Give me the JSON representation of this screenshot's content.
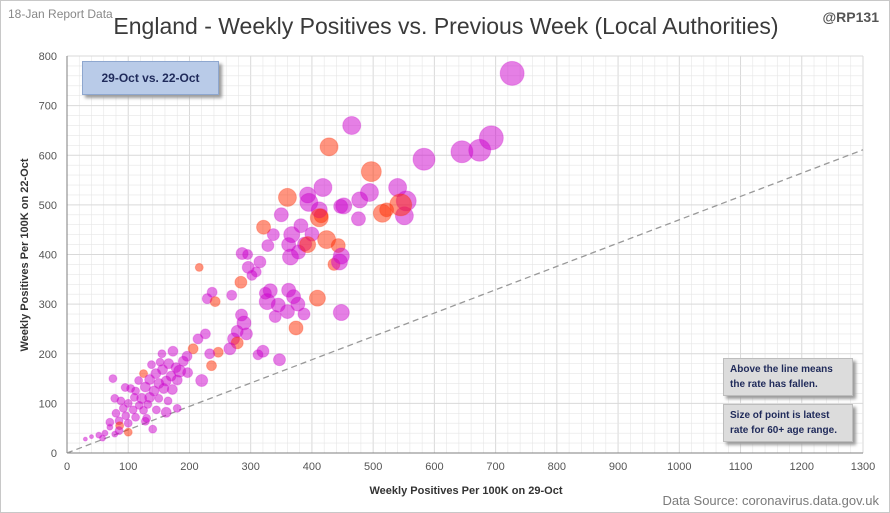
{
  "header": {
    "report_date": "18-Jan Report Data",
    "title": "England - Weekly Positives vs. Previous Week (Local Authorities)",
    "handle": "@RP131"
  },
  "period_label": "29-Oct vs. 22-Oct",
  "notes": {
    "line_note": "Above the line means the rate has fallen.",
    "size_note": "Size of point is latest rate for 60+ age range."
  },
  "source": "Data Source: coronavirus.data.gov.uk",
  "colors": {
    "rising": "#cc00cc",
    "falling": "#ff2a00",
    "reference_line": "#999999",
    "grid": "#e6e6e6"
  },
  "chart_data": {
    "type": "scatter",
    "title": "England - Weekly Positives vs. Previous Week (Local Authorities)",
    "subtitle": "29-Oct vs. 22-Oct",
    "xlabel": "Weekly Positives Per 100K on 29-Oct",
    "ylabel": "Weekly Positives Per 100K on 22-Oct",
    "xlim": [
      0,
      1300
    ],
    "ylim": [
      0,
      800
    ],
    "xticks": [
      0,
      100,
      200,
      300,
      400,
      500,
      600,
      700,
      800,
      900,
      1000,
      1100,
      1200,
      1300
    ],
    "yticks": [
      0,
      100,
      200,
      300,
      400,
      500,
      600,
      700,
      800
    ],
    "grid": true,
    "reference_line": {
      "from": [
        0,
        0
      ],
      "to": [
        1300,
        611
      ]
    },
    "points": [
      {
        "x": 727,
        "y": 765,
        "s": 12,
        "c": "rising"
      },
      {
        "x": 693,
        "y": 635,
        "s": 12,
        "c": "rising"
      },
      {
        "x": 674,
        "y": 610,
        "s": 11,
        "c": "rising"
      },
      {
        "x": 645,
        "y": 607,
        "s": 11,
        "c": "rising"
      },
      {
        "x": 583,
        "y": 592,
        "s": 11,
        "c": "rising"
      },
      {
        "x": 465,
        "y": 660,
        "s": 9,
        "c": "rising"
      },
      {
        "x": 428,
        "y": 617,
        "s": 9,
        "c": "falling"
      },
      {
        "x": 497,
        "y": 567,
        "s": 10,
        "c": "falling"
      },
      {
        "x": 418,
        "y": 535,
        "s": 9,
        "c": "rising"
      },
      {
        "x": 494,
        "y": 525,
        "s": 9,
        "c": "rising"
      },
      {
        "x": 540,
        "y": 535,
        "s": 9,
        "c": "rising"
      },
      {
        "x": 554,
        "y": 508,
        "s": 10,
        "c": "rising"
      },
      {
        "x": 551,
        "y": 478,
        "s": 9,
        "c": "rising"
      },
      {
        "x": 545,
        "y": 500,
        "s": 11,
        "c": "falling"
      },
      {
        "x": 515,
        "y": 483,
        "s": 9,
        "c": "falling"
      },
      {
        "x": 522,
        "y": 490,
        "s": 7,
        "c": "falling"
      },
      {
        "x": 478,
        "y": 510,
        "s": 8,
        "c": "rising"
      },
      {
        "x": 476,
        "y": 472,
        "s": 7,
        "c": "rising"
      },
      {
        "x": 452,
        "y": 498,
        "s": 8,
        "c": "rising"
      },
      {
        "x": 447,
        "y": 497,
        "s": 7,
        "c": "rising"
      },
      {
        "x": 393,
        "y": 520,
        "s": 8,
        "c": "rising"
      },
      {
        "x": 395,
        "y": 505,
        "s": 9,
        "c": "rising"
      },
      {
        "x": 360,
        "y": 515,
        "s": 9,
        "c": "falling"
      },
      {
        "x": 350,
        "y": 480,
        "s": 7,
        "c": "rising"
      },
      {
        "x": 412,
        "y": 490,
        "s": 8,
        "c": "rising"
      },
      {
        "x": 412,
        "y": 474,
        "s": 9,
        "c": "falling"
      },
      {
        "x": 415,
        "y": 478,
        "s": 7,
        "c": "falling"
      },
      {
        "x": 382,
        "y": 458,
        "s": 7,
        "c": "rising"
      },
      {
        "x": 367,
        "y": 440,
        "s": 8,
        "c": "rising"
      },
      {
        "x": 400,
        "y": 441,
        "s": 7,
        "c": "rising"
      },
      {
        "x": 424,
        "y": 430,
        "s": 9,
        "c": "falling"
      },
      {
        "x": 443,
        "y": 418,
        "s": 7,
        "c": "falling"
      },
      {
        "x": 362,
        "y": 420,
        "s": 7,
        "c": "rising"
      },
      {
        "x": 378,
        "y": 405,
        "s": 7,
        "c": "rising"
      },
      {
        "x": 393,
        "y": 420,
        "s": 8,
        "c": "falling"
      },
      {
        "x": 388,
        "y": 421,
        "s": 7,
        "c": "rising"
      },
      {
        "x": 448,
        "y": 397,
        "s": 8,
        "c": "rising"
      },
      {
        "x": 445,
        "y": 385,
        "s": 8,
        "c": "rising"
      },
      {
        "x": 436,
        "y": 380,
        "s": 6,
        "c": "falling"
      },
      {
        "x": 365,
        "y": 395,
        "s": 8,
        "c": "rising"
      },
      {
        "x": 321,
        "y": 455,
        "s": 7,
        "c": "falling"
      },
      {
        "x": 337,
        "y": 440,
        "s": 6,
        "c": "rising"
      },
      {
        "x": 328,
        "y": 418,
        "s": 6,
        "c": "rising"
      },
      {
        "x": 286,
        "y": 402,
        "s": 6,
        "c": "rising"
      },
      {
        "x": 295,
        "y": 400,
        "s": 5,
        "c": "rising"
      },
      {
        "x": 315,
        "y": 385,
        "s": 6,
        "c": "rising"
      },
      {
        "x": 296,
        "y": 374,
        "s": 6,
        "c": "rising"
      },
      {
        "x": 309,
        "y": 365,
        "s": 5,
        "c": "rising"
      },
      {
        "x": 284,
        "y": 344,
        "s": 6,
        "c": "falling"
      },
      {
        "x": 302,
        "y": 358,
        "s": 5,
        "c": "rising"
      },
      {
        "x": 237,
        "y": 324,
        "s": 5,
        "c": "rising"
      },
      {
        "x": 229,
        "y": 311,
        "s": 5,
        "c": "rising"
      },
      {
        "x": 242,
        "y": 305,
        "s": 5,
        "c": "falling"
      },
      {
        "x": 269,
        "y": 318,
        "s": 5,
        "c": "rising"
      },
      {
        "x": 216,
        "y": 374,
        "s": 4,
        "c": "falling"
      },
      {
        "x": 332,
        "y": 327,
        "s": 7,
        "c": "rising"
      },
      {
        "x": 324,
        "y": 322,
        "s": 6,
        "c": "rising"
      },
      {
        "x": 362,
        "y": 328,
        "s": 7,
        "c": "rising"
      },
      {
        "x": 370,
        "y": 315,
        "s": 7,
        "c": "rising"
      },
      {
        "x": 409,
        "y": 312,
        "s": 8,
        "c": "falling"
      },
      {
        "x": 327,
        "y": 305,
        "s": 8,
        "c": "rising"
      },
      {
        "x": 345,
        "y": 298,
        "s": 7,
        "c": "rising"
      },
      {
        "x": 377,
        "y": 300,
        "s": 7,
        "c": "rising"
      },
      {
        "x": 387,
        "y": 280,
        "s": 6,
        "c": "rising"
      },
      {
        "x": 360,
        "y": 285,
        "s": 7,
        "c": "rising"
      },
      {
        "x": 340,
        "y": 275,
        "s": 6,
        "c": "rising"
      },
      {
        "x": 448,
        "y": 283,
        "s": 8,
        "c": "rising"
      },
      {
        "x": 285,
        "y": 278,
        "s": 6,
        "c": "rising"
      },
      {
        "x": 289,
        "y": 262,
        "s": 7,
        "c": "rising"
      },
      {
        "x": 278,
        "y": 245,
        "s": 6,
        "c": "rising"
      },
      {
        "x": 293,
        "y": 240,
        "s": 6,
        "c": "rising"
      },
      {
        "x": 374,
        "y": 252,
        "s": 7,
        "c": "falling"
      },
      {
        "x": 226,
        "y": 240,
        "s": 5,
        "c": "rising"
      },
      {
        "x": 214,
        "y": 230,
        "s": 5,
        "c": "rising"
      },
      {
        "x": 272,
        "y": 230,
        "s": 6,
        "c": "rising"
      },
      {
        "x": 278,
        "y": 222,
        "s": 6,
        "c": "falling"
      },
      {
        "x": 266,
        "y": 210,
        "s": 6,
        "c": "rising"
      },
      {
        "x": 320,
        "y": 205,
        "s": 6,
        "c": "rising"
      },
      {
        "x": 347,
        "y": 188,
        "s": 6,
        "c": "rising"
      },
      {
        "x": 312,
        "y": 198,
        "s": 5,
        "c": "rising"
      },
      {
        "x": 247,
        "y": 203,
        "s": 5,
        "c": "falling"
      },
      {
        "x": 233,
        "y": 200,
        "s": 5,
        "c": "rising"
      },
      {
        "x": 206,
        "y": 210,
        "s": 5,
        "c": "falling"
      },
      {
        "x": 196,
        "y": 195,
        "s": 5,
        "c": "rising"
      },
      {
        "x": 190,
        "y": 185,
        "s": 5,
        "c": "rising"
      },
      {
        "x": 178,
        "y": 172,
        "s": 5,
        "c": "rising"
      },
      {
        "x": 166,
        "y": 180,
        "s": 5,
        "c": "rising"
      },
      {
        "x": 152,
        "y": 183,
        "s": 4,
        "c": "rising"
      },
      {
        "x": 138,
        "y": 178,
        "s": 4,
        "c": "rising"
      },
      {
        "x": 173,
        "y": 205,
        "s": 5,
        "c": "rising"
      },
      {
        "x": 156,
        "y": 168,
        "s": 5,
        "c": "rising"
      },
      {
        "x": 184,
        "y": 165,
        "s": 6,
        "c": "rising"
      },
      {
        "x": 197,
        "y": 162,
        "s": 5,
        "c": "rising"
      },
      {
        "x": 170,
        "y": 155,
        "s": 5,
        "c": "rising"
      },
      {
        "x": 145,
        "y": 160,
        "s": 5,
        "c": "rising"
      },
      {
        "x": 125,
        "y": 160,
        "s": 4,
        "c": "falling"
      },
      {
        "x": 117,
        "y": 146,
        "s": 4,
        "c": "rising"
      },
      {
        "x": 135,
        "y": 148,
        "s": 5,
        "c": "rising"
      },
      {
        "x": 150,
        "y": 140,
        "s": 5,
        "c": "rising"
      },
      {
        "x": 162,
        "y": 145,
        "s": 5,
        "c": "rising"
      },
      {
        "x": 180,
        "y": 147,
        "s": 5,
        "c": "rising"
      },
      {
        "x": 220,
        "y": 146,
        "s": 6,
        "c": "rising"
      },
      {
        "x": 236,
        "y": 176,
        "s": 5,
        "c": "falling"
      },
      {
        "x": 128,
        "y": 133,
        "s": 5,
        "c": "rising"
      },
      {
        "x": 142,
        "y": 125,
        "s": 5,
        "c": "rising"
      },
      {
        "x": 158,
        "y": 130,
        "s": 5,
        "c": "rising"
      },
      {
        "x": 172,
        "y": 128,
        "s": 5,
        "c": "rising"
      },
      {
        "x": 112,
        "y": 125,
        "s": 4,
        "c": "rising"
      },
      {
        "x": 104,
        "y": 130,
        "s": 4,
        "c": "rising"
      },
      {
        "x": 95,
        "y": 132,
        "s": 4,
        "c": "rising"
      },
      {
        "x": 135,
        "y": 112,
        "s": 5,
        "c": "rising"
      },
      {
        "x": 122,
        "y": 110,
        "s": 5,
        "c": "rising"
      },
      {
        "x": 110,
        "y": 112,
        "s": 4,
        "c": "rising"
      },
      {
        "x": 150,
        "y": 110,
        "s": 4,
        "c": "rising"
      },
      {
        "x": 165,
        "y": 105,
        "s": 4,
        "c": "rising"
      },
      {
        "x": 132,
        "y": 98,
        "s": 4,
        "c": "rising"
      },
      {
        "x": 118,
        "y": 96,
        "s": 4,
        "c": "rising"
      },
      {
        "x": 100,
        "y": 100,
        "s": 4,
        "c": "rising"
      },
      {
        "x": 88,
        "y": 105,
        "s": 4,
        "c": "rising"
      },
      {
        "x": 78,
        "y": 110,
        "s": 4,
        "c": "rising"
      },
      {
        "x": 92,
        "y": 90,
        "s": 4,
        "c": "rising"
      },
      {
        "x": 108,
        "y": 87,
        "s": 4,
        "c": "rising"
      },
      {
        "x": 125,
        "y": 86,
        "s": 4,
        "c": "rising"
      },
      {
        "x": 146,
        "y": 87,
        "s": 4,
        "c": "rising"
      },
      {
        "x": 162,
        "y": 82,
        "s": 5,
        "c": "rising"
      },
      {
        "x": 180,
        "y": 90,
        "s": 4,
        "c": "rising"
      },
      {
        "x": 80,
        "y": 80,
        "s": 4,
        "c": "rising"
      },
      {
        "x": 96,
        "y": 75,
        "s": 4,
        "c": "rising"
      },
      {
        "x": 112,
        "y": 72,
        "s": 4,
        "c": "rising"
      },
      {
        "x": 130,
        "y": 70,
        "s": 4,
        "c": "rising"
      },
      {
        "x": 85,
        "y": 65,
        "s": 4,
        "c": "rising"
      },
      {
        "x": 70,
        "y": 62,
        "s": 4,
        "c": "rising"
      },
      {
        "x": 100,
        "y": 60,
        "s": 4,
        "c": "rising"
      },
      {
        "x": 86,
        "y": 55,
        "s": 4,
        "c": "falling"
      },
      {
        "x": 70,
        "y": 52,
        "s": 3,
        "c": "rising"
      },
      {
        "x": 85,
        "y": 45,
        "s": 4,
        "c": "rising"
      },
      {
        "x": 100,
        "y": 42,
        "s": 4,
        "c": "falling"
      },
      {
        "x": 62,
        "y": 40,
        "s": 3,
        "c": "rising"
      },
      {
        "x": 78,
        "y": 38,
        "s": 3,
        "c": "rising"
      },
      {
        "x": 52,
        "y": 36,
        "s": 3,
        "c": "rising"
      },
      {
        "x": 40,
        "y": 33,
        "s": 2,
        "c": "rising"
      },
      {
        "x": 58,
        "y": 30,
        "s": 3,
        "c": "rising"
      },
      {
        "x": 30,
        "y": 28,
        "s": 2,
        "c": "rising"
      },
      {
        "x": 128,
        "y": 64,
        "s": 4,
        "c": "rising"
      },
      {
        "x": 75,
        "y": 150,
        "s": 4,
        "c": "rising"
      },
      {
        "x": 140,
        "y": 48,
        "s": 4,
        "c": "rising"
      },
      {
        "x": 155,
        "y": 200,
        "s": 4,
        "c": "rising"
      }
    ]
  }
}
